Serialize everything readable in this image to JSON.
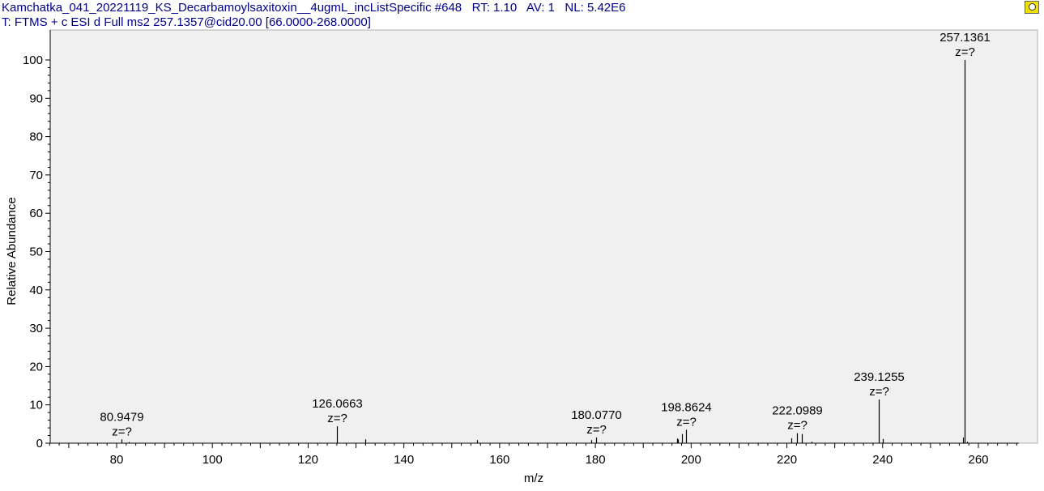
{
  "header": {
    "line1": "Kamchatka_041_20221119_KS_Decarbamoylsaxitoxin__4ugmL_incListSpecific #648   RT: 1.10   AV: 1   NL: 5.42E6",
    "line2": "T: FTMS + c ESI d Full ms2 257.1357@cid20.00 [66.0000-268.0000]",
    "pin_icon": "pin-icon"
  },
  "chart_data": {
    "type": "bar",
    "title": "",
    "xlabel": "m/z",
    "ylabel": "Relative Abundance",
    "xlim": [
      66,
      268
    ],
    "ylim": [
      0,
      100
    ],
    "xticks": [
      80,
      100,
      120,
      140,
      160,
      180,
      200,
      220,
      240,
      260
    ],
    "yticks": [
      0,
      10,
      20,
      30,
      40,
      50,
      60,
      70,
      80,
      90,
      100
    ],
    "grid": false,
    "background": "#f0f0f0",
    "peaks": [
      {
        "mz": 80.9479,
        "intensity": 1.0,
        "label": "80.9479",
        "z": "z=?"
      },
      {
        "mz": 82.5,
        "intensity": 0.3
      },
      {
        "mz": 126.0663,
        "intensity": 4.4,
        "label": "126.0663",
        "z": "z=?"
      },
      {
        "mz": 132.0,
        "intensity": 1.0
      },
      {
        "mz": 155.3,
        "intensity": 0.8
      },
      {
        "mz": 179.2,
        "intensity": 0.8
      },
      {
        "mz": 180.077,
        "intensity": 1.5,
        "label": "180.0770",
        "z": "z=?"
      },
      {
        "mz": 197.0,
        "intensity": 1.2
      },
      {
        "mz": 197.2,
        "intensity": 1.0
      },
      {
        "mz": 198.1,
        "intensity": 2.4
      },
      {
        "mz": 198.8624,
        "intensity": 3.5,
        "label": "198.8624",
        "z": "z=?"
      },
      {
        "mz": 221.0,
        "intensity": 1.3
      },
      {
        "mz": 222.0989,
        "intensity": 2.6,
        "label": "222.0989",
        "z": "z=?"
      },
      {
        "mz": 223.1,
        "intensity": 2.4
      },
      {
        "mz": 225.1,
        "intensity": 0.4
      },
      {
        "mz": 239.1255,
        "intensity": 11.4,
        "label": "239.1255",
        "z": "z=?"
      },
      {
        "mz": 240.1,
        "intensity": 1.1
      },
      {
        "mz": 256.8,
        "intensity": 1.5
      },
      {
        "mz": 257.1361,
        "intensity": 100,
        "label": "257.1361",
        "z": "z=?"
      },
      {
        "mz": 257.6,
        "intensity": 0.4
      }
    ]
  }
}
